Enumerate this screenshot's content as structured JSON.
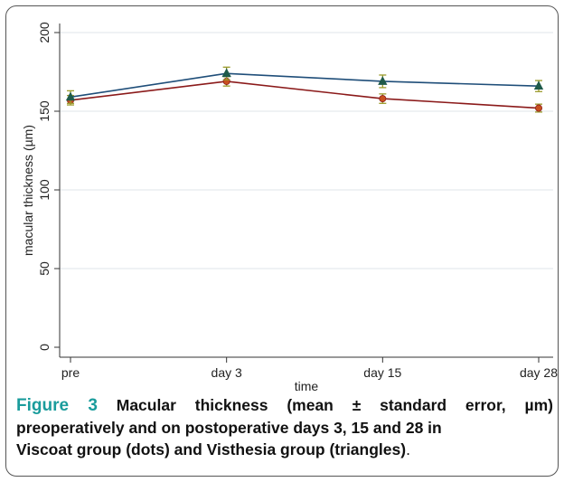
{
  "chart_data": {
    "type": "line",
    "xlabel": "time",
    "ylabel": "macular thickness (µm)",
    "categories": [
      "pre",
      "day 3",
      "day 15",
      "day 28"
    ],
    "yticks": [
      0,
      50,
      100,
      150,
      200
    ],
    "ylim": [
      -5,
      205
    ],
    "grid": true,
    "series": [
      {
        "marker": "triangle",
        "color": "#1f4e79",
        "marker_color": "#1f5a4a",
        "values": [
          159,
          174,
          169,
          166
        ],
        "error": [
          4,
          4,
          4,
          3.5
        ]
      },
      {
        "marker": "circle",
        "color": "#8b1a1a",
        "marker_color": "#c8501e",
        "values": [
          157,
          169,
          158,
          152
        ],
        "error": [
          3,
          3,
          3,
          2.5
        ]
      }
    ],
    "errorbar_color": "#9a9a2a"
  },
  "caption": {
    "label": "Figure 3",
    "line1_rest": "Macular thickness (mean ± standard error, µm)",
    "line2": "preoperatively and on postoperative days 3, 15 and 28 in",
    "line3": "Viscoat group (dots) and Visthesia group (triangles)",
    "line3_end": "."
  }
}
